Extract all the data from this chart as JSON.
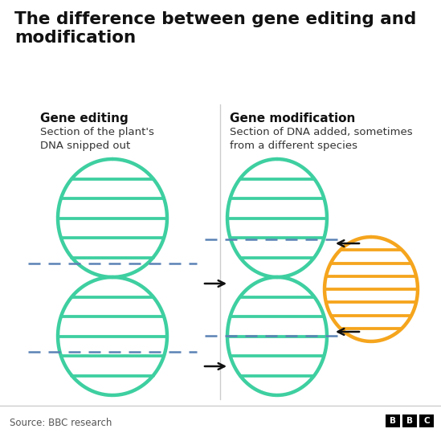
{
  "title": "The difference between gene editing and\nmodification",
  "left_title": "Gene editing",
  "left_subtitle": "Section of the plant's\nDNA snipped out",
  "right_title": "Gene modification",
  "right_subtitle": "Section of DNA added, sometimes\nfrom a different species",
  "source": "Source: BBC research",
  "dna_color": "#3ecfa0",
  "orange_color": "#f5a51d",
  "dashed_color": "#5b82b5",
  "arrow_color": "#111111",
  "bg_color": "#ffffff",
  "divider_color": "#cccccc"
}
